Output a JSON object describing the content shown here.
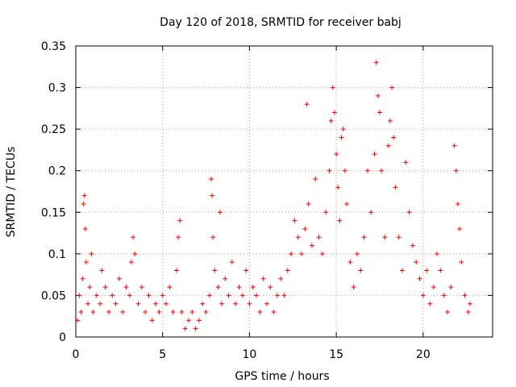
{
  "chart_data": {
    "type": "scatter",
    "title": "Day 120 of 2018, SRMTID for receiver babj",
    "xlabel": "GPS time / hours",
    "ylabel": "SRMTID / TECUs",
    "xlim": [
      0,
      24
    ],
    "ylim": [
      0,
      0.35
    ],
    "x_ticks": [
      "0",
      "5",
      "10",
      "15",
      "20"
    ],
    "y_ticks": [
      "0",
      "0.05",
      "0.1",
      "0.15",
      "0.2",
      "0.25",
      "0.3",
      "0.35"
    ],
    "grid": true,
    "marker": "+",
    "color": "#ff0000",
    "series": [
      {
        "name": "SRMTID",
        "points": [
          [
            0.1,
            0.02
          ],
          [
            0.2,
            0.05
          ],
          [
            0.3,
            0.03
          ],
          [
            0.4,
            0.07
          ],
          [
            0.45,
            0.16
          ],
          [
            0.5,
            0.17
          ],
          [
            0.55,
            0.13
          ],
          [
            0.6,
            0.09
          ],
          [
            0.7,
            0.04
          ],
          [
            0.8,
            0.06
          ],
          [
            0.9,
            0.1
          ],
          [
            1.0,
            0.03
          ],
          [
            1.2,
            0.05
          ],
          [
            1.4,
            0.04
          ],
          [
            1.5,
            0.08
          ],
          [
            1.7,
            0.06
          ],
          [
            1.9,
            0.03
          ],
          [
            2.1,
            0.05
          ],
          [
            2.3,
            0.04
          ],
          [
            2.5,
            0.07
          ],
          [
            2.7,
            0.03
          ],
          [
            2.9,
            0.06
          ],
          [
            3.1,
            0.05
          ],
          [
            3.2,
            0.09
          ],
          [
            3.3,
            0.12
          ],
          [
            3.4,
            0.1
          ],
          [
            3.6,
            0.04
          ],
          [
            3.8,
            0.06
          ],
          [
            4.0,
            0.03
          ],
          [
            4.2,
            0.05
          ],
          [
            4.4,
            0.02
          ],
          [
            4.6,
            0.04
          ],
          [
            4.8,
            0.03
          ],
          [
            5.0,
            0.05
          ],
          [
            5.2,
            0.04
          ],
          [
            5.4,
            0.06
          ],
          [
            5.6,
            0.03
          ],
          [
            5.8,
            0.08
          ],
          [
            5.9,
            0.12
          ],
          [
            6.0,
            0.14
          ],
          [
            6.1,
            0.03
          ],
          [
            6.3,
            0.01
          ],
          [
            6.5,
            0.02
          ],
          [
            6.7,
            0.03
          ],
          [
            6.9,
            0.01
          ],
          [
            7.1,
            0.02
          ],
          [
            7.3,
            0.04
          ],
          [
            7.5,
            0.03
          ],
          [
            7.7,
            0.05
          ],
          [
            7.8,
            0.19
          ],
          [
            7.85,
            0.17
          ],
          [
            7.9,
            0.12
          ],
          [
            8.0,
            0.08
          ],
          [
            8.2,
            0.06
          ],
          [
            8.3,
            0.15
          ],
          [
            8.4,
            0.04
          ],
          [
            8.6,
            0.07
          ],
          [
            8.8,
            0.05
          ],
          [
            9.0,
            0.09
          ],
          [
            9.2,
            0.04
          ],
          [
            9.4,
            0.06
          ],
          [
            9.6,
            0.05
          ],
          [
            9.8,
            0.08
          ],
          [
            10.0,
            0.04
          ],
          [
            10.2,
            0.06
          ],
          [
            10.4,
            0.05
          ],
          [
            10.6,
            0.03
          ],
          [
            10.8,
            0.07
          ],
          [
            11.0,
            0.04
          ],
          [
            11.2,
            0.06
          ],
          [
            11.4,
            0.03
          ],
          [
            11.6,
            0.05
          ],
          [
            11.8,
            0.07
          ],
          [
            12.0,
            0.05
          ],
          [
            12.2,
            0.08
          ],
          [
            12.4,
            0.1
          ],
          [
            12.6,
            0.14
          ],
          [
            12.8,
            0.12
          ],
          [
            13.0,
            0.1
          ],
          [
            13.2,
            0.13
          ],
          [
            13.3,
            0.28
          ],
          [
            13.4,
            0.16
          ],
          [
            13.6,
            0.11
          ],
          [
            13.8,
            0.19
          ],
          [
            14.0,
            0.12
          ],
          [
            14.2,
            0.1
          ],
          [
            14.4,
            0.15
          ],
          [
            14.6,
            0.2
          ],
          [
            14.7,
            0.26
          ],
          [
            14.8,
            0.3
          ],
          [
            14.9,
            0.27
          ],
          [
            15.0,
            0.22
          ],
          [
            15.1,
            0.18
          ],
          [
            15.2,
            0.14
          ],
          [
            15.3,
            0.24
          ],
          [
            15.4,
            0.25
          ],
          [
            15.5,
            0.2
          ],
          [
            15.6,
            0.16
          ],
          [
            15.8,
            0.09
          ],
          [
            16.0,
            0.06
          ],
          [
            16.2,
            0.1
          ],
          [
            16.4,
            0.08
          ],
          [
            16.6,
            0.12
          ],
          [
            16.8,
            0.2
          ],
          [
            17.0,
            0.15
          ],
          [
            17.2,
            0.22
          ],
          [
            17.3,
            0.33
          ],
          [
            17.4,
            0.29
          ],
          [
            17.5,
            0.27
          ],
          [
            17.6,
            0.2
          ],
          [
            17.8,
            0.12
          ],
          [
            18.0,
            0.23
          ],
          [
            18.1,
            0.26
          ],
          [
            18.2,
            0.3
          ],
          [
            18.3,
            0.24
          ],
          [
            18.4,
            0.18
          ],
          [
            18.6,
            0.12
          ],
          [
            18.8,
            0.08
          ],
          [
            19.0,
            0.21
          ],
          [
            19.2,
            0.15
          ],
          [
            19.4,
            0.11
          ],
          [
            19.6,
            0.09
          ],
          [
            19.8,
            0.07
          ],
          [
            20.0,
            0.05
          ],
          [
            20.2,
            0.08
          ],
          [
            20.4,
            0.04
          ],
          [
            20.6,
            0.06
          ],
          [
            20.8,
            0.1
          ],
          [
            21.0,
            0.08
          ],
          [
            21.2,
            0.05
          ],
          [
            21.4,
            0.03
          ],
          [
            21.6,
            0.06
          ],
          [
            21.8,
            0.23
          ],
          [
            21.9,
            0.2
          ],
          [
            22.0,
            0.16
          ],
          [
            22.1,
            0.13
          ],
          [
            22.2,
            0.09
          ],
          [
            22.4,
            0.05
          ],
          [
            22.6,
            0.03
          ],
          [
            22.7,
            0.04
          ]
        ]
      }
    ]
  }
}
